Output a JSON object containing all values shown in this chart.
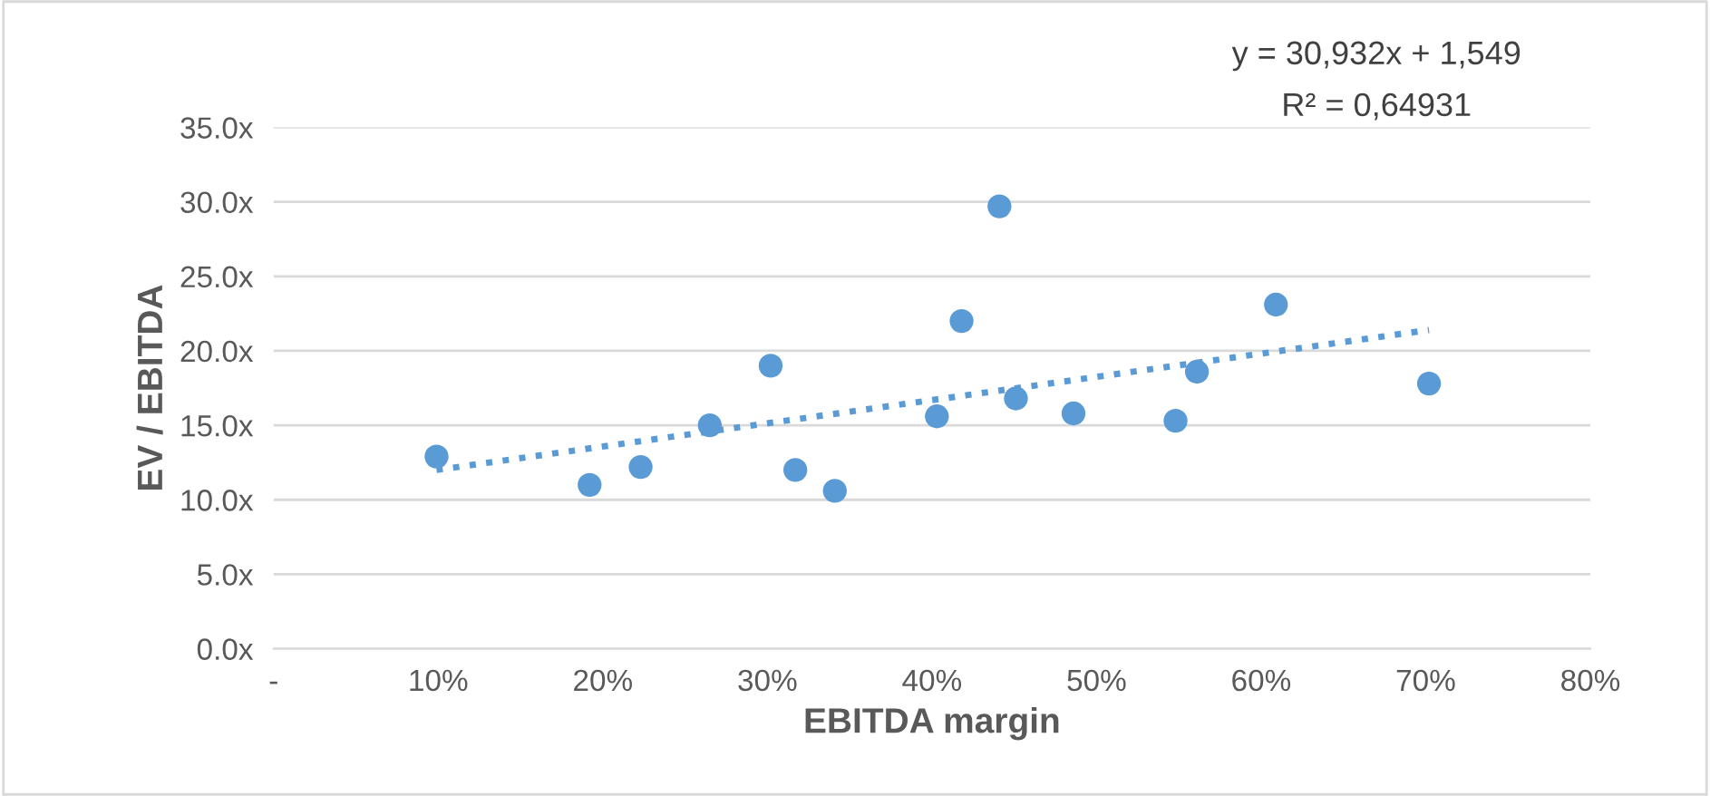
{
  "chart_data": {
    "type": "scatter",
    "xlabel": "EBITDA margin",
    "ylabel": "EV / EBITDA",
    "annotations": [
      "y = 30,932x + 1,549",
      "R² = 0,64931"
    ],
    "xlim": [
      0,
      0.8
    ],
    "ylim": [
      0,
      35
    ],
    "xticks": [
      {
        "value": 0,
        "label": "-"
      },
      {
        "value": 0.1,
        "label": "10%"
      },
      {
        "value": 0.2,
        "label": "20%"
      },
      {
        "value": 0.3,
        "label": "30%"
      },
      {
        "value": 0.4,
        "label": "40%"
      },
      {
        "value": 0.5,
        "label": "50%"
      },
      {
        "value": 0.6,
        "label": "60%"
      },
      {
        "value": 0.7,
        "label": "70%"
      },
      {
        "value": 0.8,
        "label": "80%"
      }
    ],
    "yticks": [
      {
        "value": 0,
        "label": "0.0x"
      },
      {
        "value": 5,
        "label": "5.0x"
      },
      {
        "value": 10,
        "label": "10.0x"
      },
      {
        "value": 15,
        "label": "15.0x"
      },
      {
        "value": 20,
        "label": "20.0x"
      },
      {
        "value": 25,
        "label": "25.0x"
      },
      {
        "value": 30,
        "label": "30.0x"
      },
      {
        "value": 35,
        "label": "35.0x"
      }
    ],
    "grid": "y",
    "marker": "circle",
    "series": [
      {
        "color": "#5b9bd5",
        "x": [
          0.099,
          0.192,
          0.223,
          0.265,
          0.302,
          0.317,
          0.341,
          0.403,
          0.418,
          0.441,
          0.451,
          0.486,
          0.548,
          0.561,
          0.609,
          0.702
        ],
        "values": [
          12.9,
          11.0,
          12.2,
          15.0,
          19.0,
          12.0,
          10.6,
          15.6,
          22.0,
          29.7,
          16.8,
          15.8,
          15.3,
          18.6,
          23.1,
          17.8
        ]
      },
      {
        "type": "line",
        "color": "#5b9bd5",
        "line_style": "dotted",
        "marker": "none",
        "x": [
          0.099,
          0.702
        ],
        "values": [
          12.0,
          21.4
        ]
      }
    ]
  }
}
